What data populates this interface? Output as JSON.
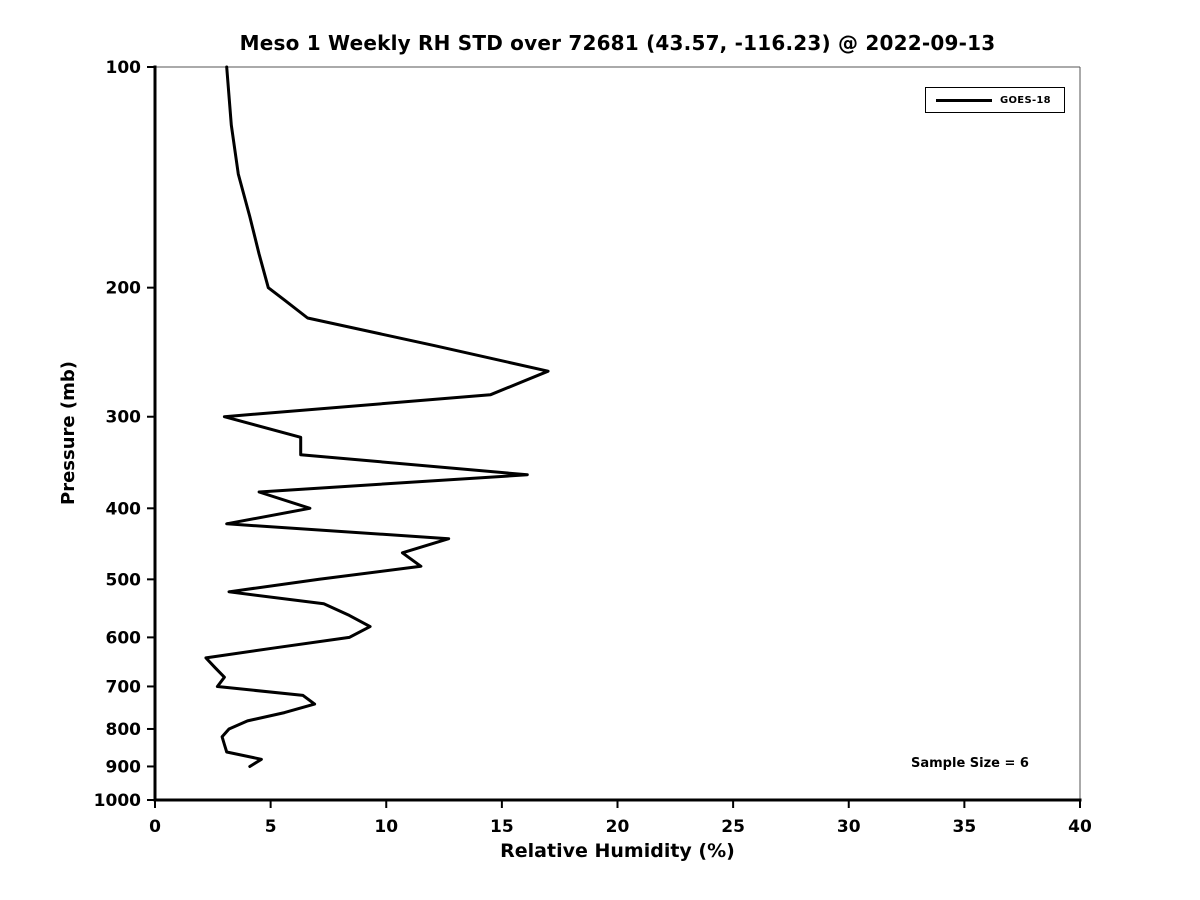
{
  "chart_data": {
    "type": "line",
    "title": "Meso 1 Weekly RH STD over 72681 (43.57, -116.23) @ 2022-09-13",
    "xlabel": "Relative Humidity (%)",
    "ylabel": "Pressure (mb)",
    "annotation": "Sample Size = 6",
    "xlim": [
      0,
      40
    ],
    "ylim": [
      1000,
      100
    ],
    "y_scale": "log",
    "y_axis_inverted": true,
    "grid": false,
    "x_ticks": [
      0,
      5,
      10,
      15,
      20,
      25,
      30,
      35,
      40
    ],
    "y_ticks": [
      100,
      200,
      300,
      400,
      500,
      600,
      700,
      800,
      900,
      1000
    ],
    "legend_position": "upper right",
    "line_color": "#000000",
    "series": [
      {
        "name": "GOES-18",
        "color": "#000000",
        "x_name": "rh_percent",
        "y_name": "pressure_mb",
        "points": [
          [
            100,
            3.1
          ],
          [
            120,
            3.3
          ],
          [
            140,
            3.6
          ],
          [
            160,
            4.1
          ],
          [
            180,
            4.5
          ],
          [
            200,
            4.9
          ],
          [
            208,
            5.6
          ],
          [
            220,
            6.6
          ],
          [
            240,
            12.1
          ],
          [
            260,
            17.0
          ],
          [
            280,
            14.5
          ],
          [
            300,
            3.0
          ],
          [
            320,
            6.3
          ],
          [
            338,
            6.3
          ],
          [
            360,
            16.1
          ],
          [
            380,
            4.5
          ],
          [
            400,
            6.7
          ],
          [
            420,
            3.1
          ],
          [
            440,
            12.7
          ],
          [
            460,
            10.7
          ],
          [
            480,
            11.5
          ],
          [
            500,
            7.1
          ],
          [
            520,
            3.2
          ],
          [
            540,
            7.3
          ],
          [
            560,
            8.4
          ],
          [
            580,
            9.3
          ],
          [
            600,
            8.4
          ],
          [
            620,
            5.2
          ],
          [
            640,
            2.2
          ],
          [
            660,
            2.6
          ],
          [
            680,
            3.0
          ],
          [
            700,
            2.7
          ],
          [
            720,
            6.4
          ],
          [
            740,
            6.9
          ],
          [
            760,
            5.6
          ],
          [
            780,
            4.0
          ],
          [
            800,
            3.2
          ],
          [
            820,
            2.9
          ],
          [
            840,
            3.0
          ],
          [
            860,
            3.1
          ],
          [
            880,
            4.6
          ],
          [
            900,
            4.1
          ]
        ]
      }
    ]
  }
}
